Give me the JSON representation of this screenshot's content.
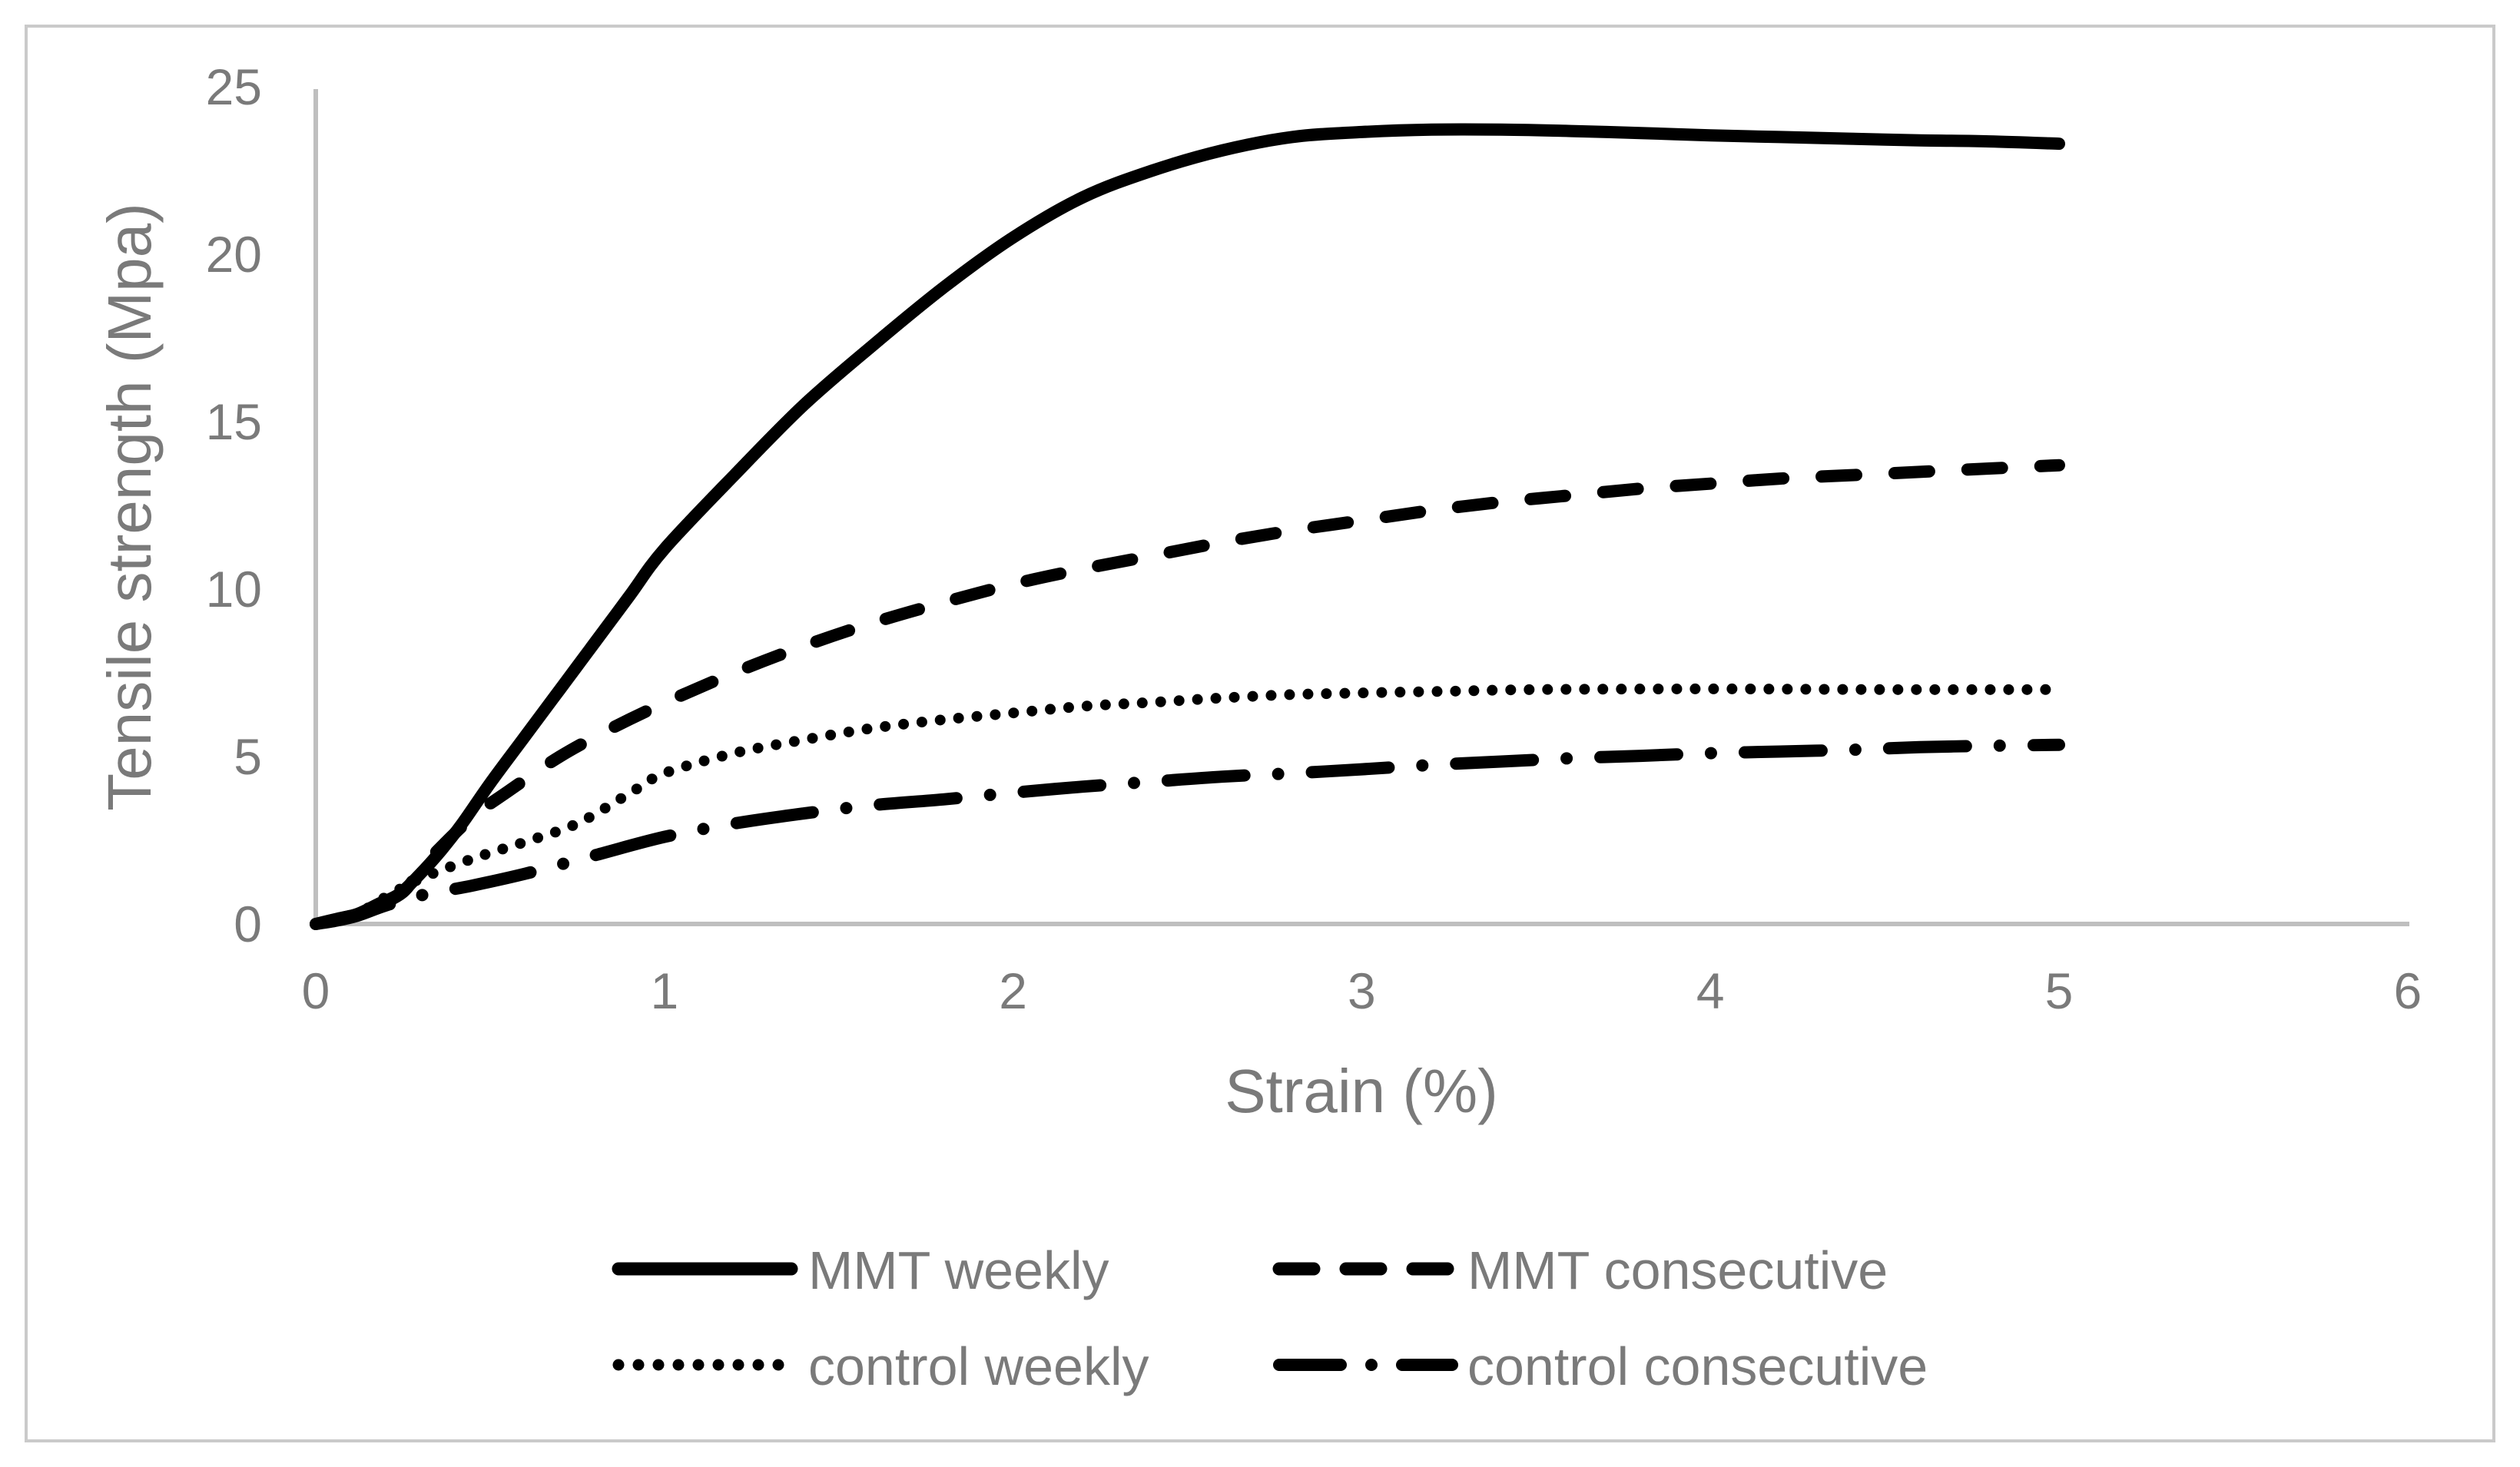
{
  "figure": {
    "background_color": "#ffffff",
    "border_color": "#cacaca",
    "axis_line_color": "#bfbfbf",
    "text_color": "#7a7a7a",
    "series_color": "#000000"
  },
  "chart_data": {
    "type": "line",
    "title": "",
    "xlabel": "Strain (%)",
    "ylabel": "Tensile strength (Mpa)",
    "xlim": [
      0,
      6
    ],
    "ylim": [
      0,
      25
    ],
    "x_ticks": [
      "0",
      "1",
      "2",
      "3",
      "4",
      "5",
      "6"
    ],
    "y_ticks": [
      "0",
      "5",
      "10",
      "15",
      "20",
      "25"
    ],
    "grid": false,
    "legend_position": "bottom",
    "series": [
      {
        "name": "MMT weekly",
        "slug": "mmt-weekly",
        "line_style": "solid",
        "x": [
          0,
          0.06,
          0.12,
          0.18,
          0.24,
          0.3,
          0.36,
          0.42,
          0.5,
          0.6,
          0.7,
          0.8,
          0.9,
          1.0,
          1.2,
          1.4,
          1.6,
          1.8,
          2.0,
          2.2,
          2.4,
          2.6,
          2.8,
          3.0,
          3.2,
          3.4,
          3.6,
          3.8,
          4.0,
          4.2,
          4.4,
          4.6,
          4.8,
          5.0
        ],
        "y": [
          0,
          0.15,
          0.3,
          0.6,
          0.9,
          1.5,
          2.2,
          3.0,
          4.2,
          5.6,
          7.0,
          8.4,
          9.8,
          11.2,
          13.4,
          15.5,
          17.3,
          19.0,
          20.5,
          21.7,
          22.5,
          23.1,
          23.5,
          23.65,
          23.72,
          23.72,
          23.68,
          23.62,
          23.55,
          23.5,
          23.45,
          23.4,
          23.37,
          23.3
        ]
      },
      {
        "name": "MMT consecutive",
        "slug": "mmt-consecutive",
        "line_style": "dashed",
        "x": [
          0,
          0.06,
          0.12,
          0.18,
          0.25,
          0.3,
          0.35,
          0.45,
          0.55,
          0.7,
          0.85,
          1.0,
          1.2,
          1.4,
          1.6,
          1.8,
          2.0,
          2.2,
          2.4,
          2.6,
          2.8,
          3.0,
          3.2,
          3.4,
          3.6,
          3.8,
          4.0,
          4.2,
          4.4,
          4.6,
          4.8,
          5.0
        ],
        "y": [
          0,
          0.15,
          0.3,
          0.55,
          0.95,
          1.6,
          2.2,
          3.2,
          3.95,
          5.0,
          5.85,
          6.6,
          7.5,
          8.3,
          9.0,
          9.6,
          10.15,
          10.6,
          11.0,
          11.4,
          11.75,
          12.05,
          12.35,
          12.6,
          12.8,
          13.0,
          13.15,
          13.3,
          13.4,
          13.5,
          13.6,
          13.7
        ]
      },
      {
        "name": "control weekly",
        "slug": "control-weekly",
        "line_style": "dotted",
        "x": [
          0,
          0.06,
          0.12,
          0.2,
          0.3,
          0.45,
          0.6,
          0.75,
          0.9,
          1.0,
          1.2,
          1.4,
          1.6,
          1.8,
          2.0,
          2.2,
          2.4,
          2.6,
          2.8,
          3.0,
          3.25,
          3.5,
          4.0,
          4.5,
          5.0
        ],
        "y": [
          0,
          0.1,
          0.3,
          0.8,
          1.35,
          1.95,
          2.45,
          3.0,
          3.9,
          4.5,
          5.1,
          5.5,
          5.85,
          6.1,
          6.3,
          6.5,
          6.62,
          6.75,
          6.85,
          6.9,
          6.95,
          7.0,
          7.02,
          7.0,
          7.0
        ]
      },
      {
        "name": "control consecutive",
        "slug": "control-consecutive",
        "line_style": "dash-dot",
        "x": [
          0,
          0.06,
          0.12,
          0.2,
          0.3,
          0.45,
          0.6,
          0.8,
          1.0,
          1.2,
          1.4,
          1.6,
          1.8,
          2.0,
          2.2,
          2.4,
          2.6,
          2.8,
          3.0,
          3.2,
          3.4,
          3.6,
          3.8,
          4.0,
          4.2,
          4.4,
          4.6,
          4.8,
          5.0
        ],
        "y": [
          0,
          0.1,
          0.25,
          0.55,
          0.85,
          1.15,
          1.5,
          2.05,
          2.6,
          3.0,
          3.3,
          3.55,
          3.72,
          3.92,
          4.1,
          4.25,
          4.4,
          4.5,
          4.62,
          4.75,
          4.85,
          4.95,
          5.02,
          5.1,
          5.15,
          5.2,
          5.28,
          5.32,
          5.35
        ]
      }
    ]
  }
}
